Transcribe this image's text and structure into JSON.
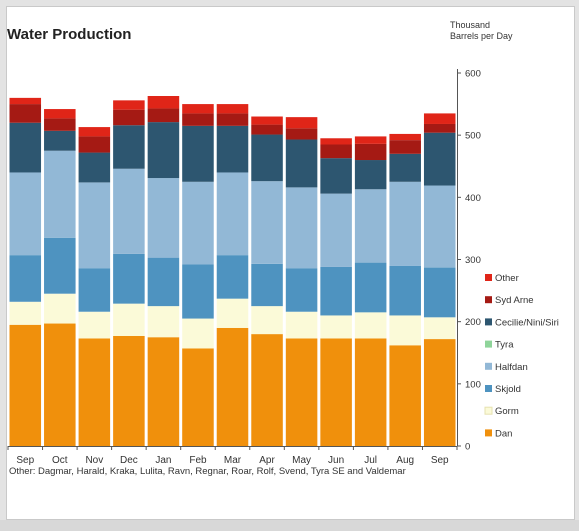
{
  "chart_data": {
    "type": "bar",
    "stacked": true,
    "title": "Water Production",
    "ylabel": "Thousand Barrels per Day",
    "unit_line1": "Thousand",
    "unit_line2": "Barrels per Day",
    "ylim": [
      0,
      600
    ],
    "yticks": [
      0,
      100,
      200,
      300,
      400,
      500,
      600
    ],
    "y_axis_position": "right",
    "legend_position": "right",
    "grid": false,
    "categories": [
      "Sep",
      "Oct",
      "Nov",
      "Dec",
      "Jan",
      "Feb",
      "Mar",
      "Apr",
      "May",
      "Jun",
      "Jul",
      "Aug",
      "Sep"
    ],
    "series": [
      {
        "name": "Dan",
        "color": "#f0900c",
        "values": [
          195,
          197,
          173,
          177,
          175,
          157,
          190,
          180,
          173,
          173,
          173,
          162,
          172
        ]
      },
      {
        "name": "Gorm",
        "color": "#fbfad8",
        "values": [
          37,
          48,
          43,
          52,
          50,
          48,
          47,
          45,
          43,
          37,
          42,
          48,
          35
        ]
      },
      {
        "name": "Skjold",
        "color": "#4e93c0",
        "values": [
          75,
          90,
          70,
          80,
          78,
          87,
          70,
          68,
          70,
          78,
          80,
          80,
          80
        ]
      },
      {
        "name": "Halfdan",
        "color": "#92b8d6",
        "values": [
          133,
          140,
          138,
          137,
          128,
          133,
          133,
          133,
          130,
          118,
          118,
          135,
          132
        ]
      },
      {
        "name": "Tyra",
        "color": "#8fd49a",
        "values": [
          0,
          0,
          0,
          0,
          0,
          0,
          0,
          0,
          0,
          0,
          0,
          0,
          0
        ]
      },
      {
        "name": "Cecilie/Nini/Siri",
        "color": "#2d5670",
        "values": [
          80,
          32,
          48,
          70,
          90,
          90,
          75,
          75,
          77,
          57,
          47,
          45,
          85
        ]
      },
      {
        "name": "Syd Arne",
        "color": "#a51a14",
        "values": [
          30,
          20,
          26,
          25,
          22,
          20,
          20,
          16,
          18,
          22,
          26,
          22,
          14
        ]
      },
      {
        "name": "Other",
        "color": "#e02518",
        "values": [
          10,
          15,
          15,
          15,
          20,
          15,
          15,
          13,
          18,
          10,
          12,
          10,
          17
        ]
      }
    ],
    "legend_order": [
      "Other",
      "Syd Arne",
      "Cecilie/Nini/Siri",
      "Tyra",
      "Halfdan",
      "Skjold",
      "Gorm",
      "Dan"
    ],
    "footnote": "Other: Dagmar, Harald, Kraka, Lulita, Ravn, Regnar, Roar, Rolf, Svend, Tyra SE and Valdemar"
  }
}
